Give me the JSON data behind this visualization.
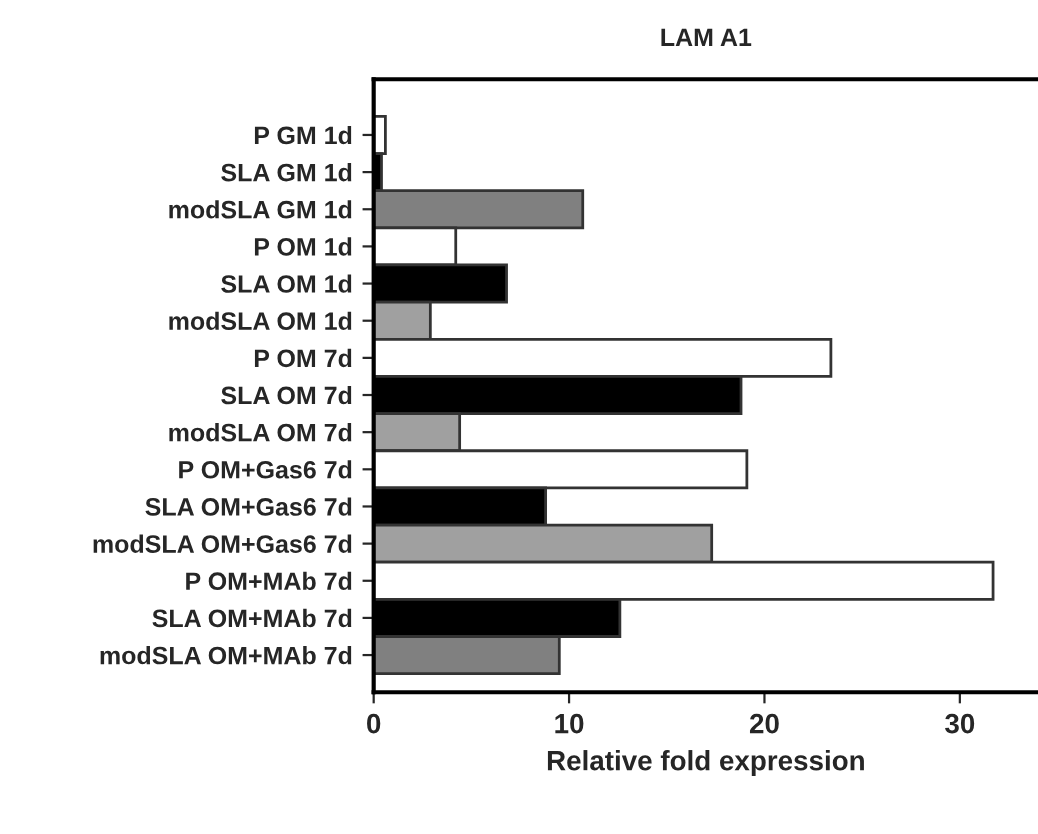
{
  "chart_data": {
    "type": "bar",
    "orientation": "horizontal",
    "title": "LAM A1",
    "xlabel": "Relative fold expression",
    "categories": [
      "P GM 1d",
      "SLA GM 1d",
      "modSLA GM 1d",
      "P OM 1d",
      "SLA OM 1d",
      "modSLA OM 1d",
      "P OM 7d",
      "SLA OM 7d",
      "modSLA OM 7d",
      "P OM+Gas6 7d",
      "SLA OM+Gas6 7d",
      "modSLA OM+Gas6 7d",
      "P OM+MAb 7d",
      "SLA OM+MAb 7d",
      "modSLA OM+MAb 7d"
    ],
    "values": [
      0.6,
      0.4,
      10.7,
      4.2,
      6.8,
      2.9,
      23.4,
      18.8,
      4.4,
      19.1,
      8.8,
      17.3,
      31.7,
      12.6,
      9.5
    ],
    "colors": [
      "#ffffff",
      "#000000",
      "#808080",
      "#ffffff",
      "#000000",
      "#a0a0a0",
      "#ffffff",
      "#000000",
      "#a0a0a0",
      "#ffffff",
      "#000000",
      "#a0a0a0",
      "#ffffff",
      "#000000",
      "#808080"
    ],
    "xlim": [
      0,
      34
    ],
    "xticks": [
      0,
      10,
      20,
      30
    ],
    "grid": false,
    "legend": false
  }
}
